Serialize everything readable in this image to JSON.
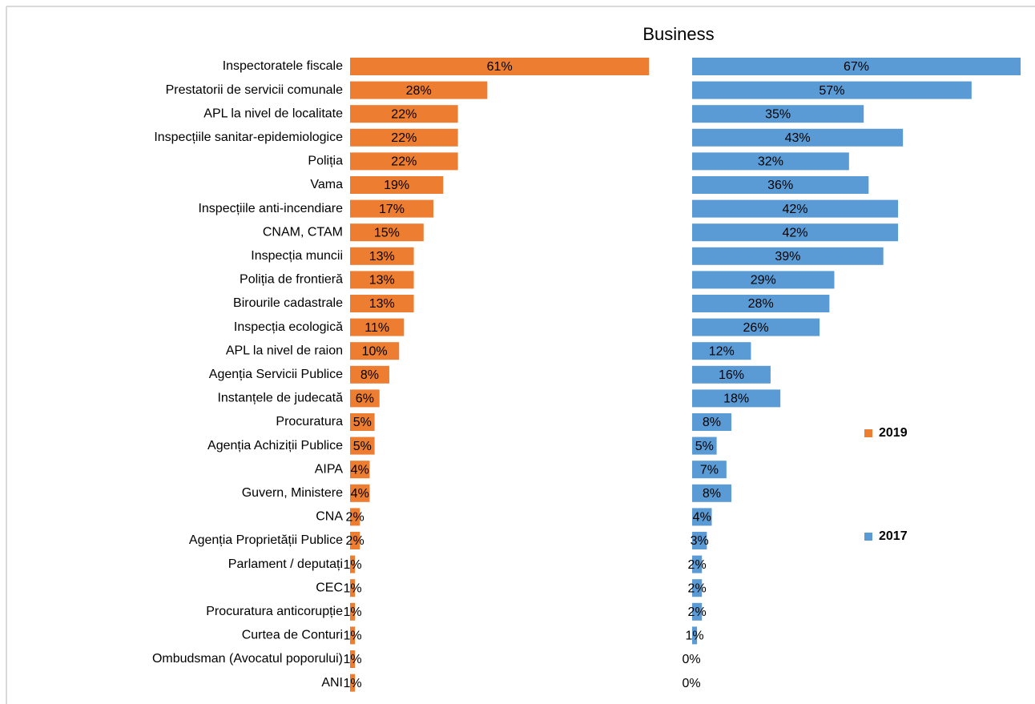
{
  "chart_data": {
    "type": "bar",
    "orientation": "horizontal",
    "title": "Business",
    "categories": [
      "Inspectoratele fiscale",
      "Prestatorii de servicii comunale",
      "APL la nivel de localitate",
      "Inspecțiile sanitar-epidemiologice",
      "Poliția",
      "Vama",
      "Inspecțiile anti-incendiare",
      "CNAM, CTAM",
      "Inspecția muncii",
      "Poliția de frontieră",
      "Birourile cadastrale",
      "Inspecția ecologică",
      "APL la nivel de raion",
      "Agenția Servicii Publice",
      "Instanțele de judecată",
      "Procuratura",
      "Agenția Achiziții Publice",
      "AIPA",
      "Guvern, Ministere",
      "CNA",
      "Agenția Proprietății Publice",
      "Parlament / deputați",
      "CEC",
      "Procuratura anticorupție",
      "Curtea de Conturi",
      "Ombudsman (Avocatul poporului)",
      "ANI"
    ],
    "series": [
      {
        "name": "2019",
        "color": "#ed7d31",
        "values": [
          61,
          28,
          22,
          22,
          22,
          19,
          17,
          15,
          13,
          13,
          13,
          11,
          10,
          8,
          6,
          5,
          5,
          4,
          4,
          2,
          2,
          1,
          1,
          1,
          1,
          1,
          1
        ],
        "value_labels": [
          "61%",
          "28%",
          "22%",
          "22%",
          "22%",
          "19%",
          "17%",
          "15%",
          "13%",
          "13%",
          "13%",
          "11%",
          "10%",
          "8%",
          "6%",
          "5%",
          "5%",
          "4%",
          "4%",
          "2%",
          "2%",
          "1%",
          "1%",
          "1%",
          "1%",
          "1%",
          "1%"
        ]
      },
      {
        "name": "2017",
        "color": "#5b9bd5",
        "values": [
          67,
          57,
          35,
          43,
          32,
          36,
          42,
          42,
          39,
          29,
          28,
          26,
          12,
          16,
          18,
          8,
          5,
          7,
          8,
          4,
          3,
          2,
          2,
          2,
          1,
          0,
          0
        ],
        "value_labels": [
          "67%",
          "57%",
          "35%",
          "43%",
          "32%",
          "36%",
          "42%",
          "42%",
          "39%",
          "29%",
          "28%",
          "26%",
          "12%",
          "16%",
          "18%",
          "8%",
          "5%",
          "7%",
          "8%",
          "4%",
          "3%",
          "2%",
          "2%",
          "2%",
          "1%",
          "0%",
          "0%"
        ]
      }
    ],
    "legend": "right"
  }
}
